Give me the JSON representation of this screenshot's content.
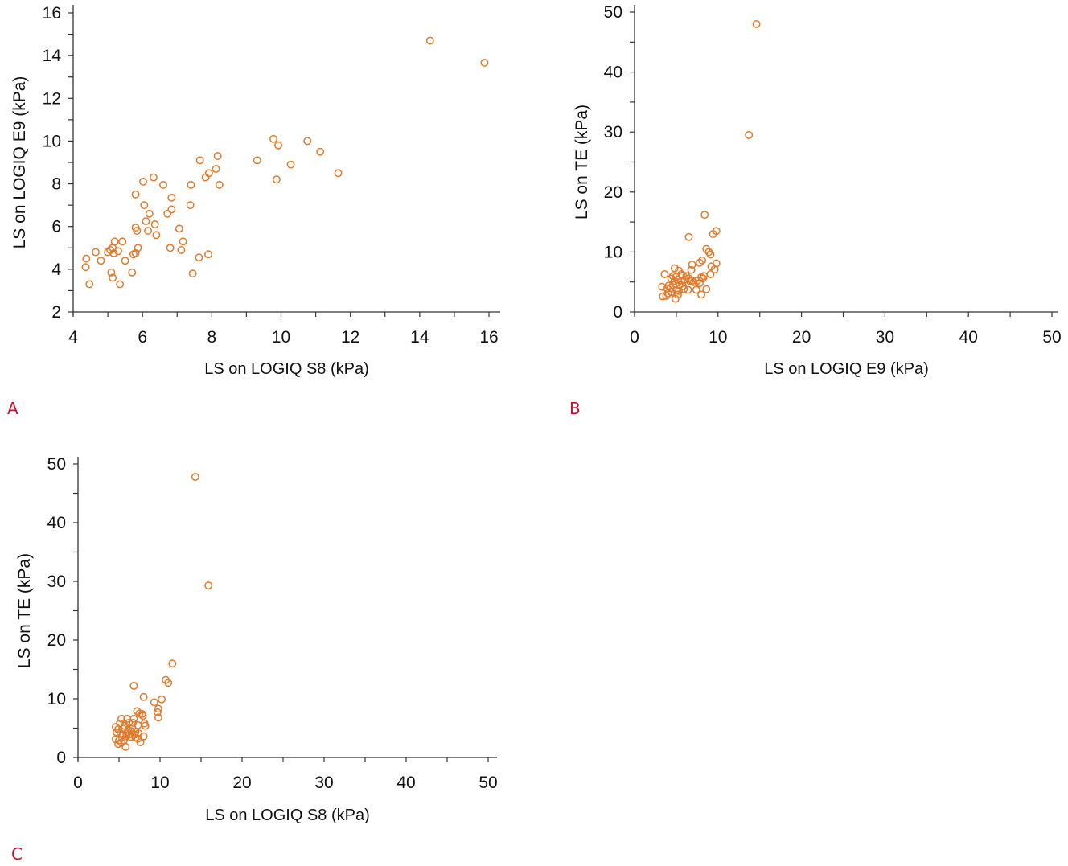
{
  "panels": [
    {
      "label": "A"
    },
    {
      "label": "B"
    },
    {
      "label": "C"
    }
  ],
  "colors": {
    "marker": "#e07a2c",
    "axis": "#333333",
    "panel_label": "#c8102e"
  },
  "chart_data": [
    {
      "id": "A",
      "type": "scatter",
      "title": "",
      "xlabel": "LS on LOGIQ S8 (kPa)",
      "ylabel": "LS on LOGIQ E9 (kPa)",
      "xlim": [
        4,
        16
      ],
      "ylim": [
        2,
        16
      ],
      "xticks": [
        4,
        6,
        8,
        10,
        12,
        14,
        16
      ],
      "xminor": [
        5,
        7,
        9,
        11,
        13,
        15
      ],
      "yticks": [
        2,
        4,
        6,
        8,
        10,
        12,
        14,
        16
      ],
      "yminor": [
        3,
        5,
        7,
        9,
        11,
        13,
        15
      ],
      "grid": false,
      "marker": "open-circle",
      "points": [
        [
          14.3,
          14.7
        ],
        [
          15.87,
          13.67
        ],
        [
          9.78,
          10.1
        ],
        [
          9.92,
          9.8
        ],
        [
          10.76,
          10.0
        ],
        [
          11.13,
          9.5
        ],
        [
          10.28,
          8.9
        ],
        [
          9.31,
          9.1
        ],
        [
          9.87,
          8.2
        ],
        [
          11.65,
          8.5
        ],
        [
          8.17,
          9.3
        ],
        [
          7.66,
          9.1
        ],
        [
          8.12,
          8.7
        ],
        [
          7.92,
          8.5
        ],
        [
          7.82,
          8.3
        ],
        [
          8.22,
          7.95
        ],
        [
          6.02,
          8.1
        ],
        [
          6.32,
          8.3
        ],
        [
          6.6,
          7.95
        ],
        [
          5.8,
          7.5
        ],
        [
          6.84,
          7.35
        ],
        [
          7.4,
          7.95
        ],
        [
          6.05,
          7.0
        ],
        [
          7.38,
          7.0
        ],
        [
          6.2,
          6.6
        ],
        [
          6.84,
          6.8
        ],
        [
          6.72,
          6.6
        ],
        [
          6.1,
          6.25
        ],
        [
          6.36,
          6.1
        ],
        [
          7.06,
          5.9
        ],
        [
          5.8,
          5.95
        ],
        [
          5.84,
          5.8
        ],
        [
          6.16,
          5.8
        ],
        [
          6.4,
          5.6
        ],
        [
          7.17,
          5.3
        ],
        [
          7.12,
          4.9
        ],
        [
          6.8,
          5.0
        ],
        [
          7.45,
          3.8
        ],
        [
          7.63,
          4.55
        ],
        [
          7.9,
          4.7
        ],
        [
          5.87,
          5.0
        ],
        [
          5.74,
          4.7
        ],
        [
          5.8,
          4.75
        ],
        [
          5.5,
          4.4
        ],
        [
          5.7,
          3.85
        ],
        [
          5.2,
          5.3
        ],
        [
          5.42,
          5.3
        ],
        [
          5.14,
          5.0
        ],
        [
          5.3,
          4.85
        ],
        [
          5.17,
          4.75
        ],
        [
          5.0,
          4.8
        ],
        [
          5.07,
          4.9
        ],
        [
          4.65,
          4.8
        ],
        [
          4.38,
          4.5
        ],
        [
          4.8,
          4.4
        ],
        [
          4.36,
          4.1
        ],
        [
          5.1,
          3.85
        ],
        [
          5.14,
          3.6
        ],
        [
          4.47,
          3.3
        ],
        [
          5.35,
          3.3
        ]
      ]
    },
    {
      "id": "B",
      "type": "scatter",
      "title": "",
      "xlabel": "LS on LOGIQ E9 (kPa)",
      "ylabel": "LS on TE (kPa)",
      "xlim": [
        0,
        50
      ],
      "ylim": [
        0,
        50
      ],
      "xticks": [
        0,
        10,
        20,
        30,
        40,
        50
      ],
      "xminor": [
        5,
        15,
        25,
        35,
        45
      ],
      "yticks": [
        0,
        10,
        20,
        30,
        40,
        50
      ],
      "yminor": [
        5,
        15,
        25,
        35,
        45
      ],
      "grid": false,
      "marker": "open-circle",
      "points": [
        [
          14.6,
          48.0
        ],
        [
          13.7,
          29.5
        ],
        [
          8.4,
          16.2
        ],
        [
          9.8,
          13.5
        ],
        [
          9.4,
          13.0
        ],
        [
          6.5,
          12.5
        ],
        [
          8.6,
          10.5
        ],
        [
          8.9,
          10.0
        ],
        [
          9.1,
          9.6
        ],
        [
          8.1,
          8.6
        ],
        [
          7.8,
          8.2
        ],
        [
          6.9,
          7.9
        ],
        [
          6.8,
          7.0
        ],
        [
          9.8,
          8.1
        ],
        [
          9.6,
          7.1
        ],
        [
          9.2,
          7.6
        ],
        [
          9.1,
          6.3
        ],
        [
          4.8,
          7.3
        ],
        [
          5.3,
          6.9
        ],
        [
          3.6,
          6.3
        ],
        [
          4.6,
          6.0
        ],
        [
          5.0,
          5.9
        ],
        [
          5.8,
          6.1
        ],
        [
          5.6,
          6.3
        ],
        [
          6.2,
          6.0
        ],
        [
          4.4,
          5.6
        ],
        [
          4.8,
          5.2
        ],
        [
          5.2,
          5.4
        ],
        [
          5.6,
          5.1
        ],
        [
          6.0,
          5.4
        ],
        [
          6.6,
          5.2
        ],
        [
          7.1,
          5.0
        ],
        [
          6.9,
          5.2
        ],
        [
          4.9,
          4.7
        ],
        [
          4.6,
          4.5
        ],
        [
          5.4,
          4.5
        ],
        [
          5.8,
          4.3
        ],
        [
          4.1,
          4.4
        ],
        [
          4.3,
          4.0
        ],
        [
          3.3,
          4.2
        ],
        [
          3.9,
          3.9
        ],
        [
          4.4,
          3.3
        ],
        [
          4.0,
          3.1
        ],
        [
          3.4,
          2.6
        ],
        [
          3.8,
          2.7
        ],
        [
          5.0,
          3.6
        ],
        [
          5.2,
          2.9
        ],
        [
          4.9,
          2.2
        ],
        [
          5.3,
          3.5
        ],
        [
          5.9,
          3.8
        ],
        [
          6.4,
          3.7
        ],
        [
          7.4,
          3.7
        ],
        [
          7.8,
          4.8
        ],
        [
          8.0,
          5.8
        ],
        [
          8.3,
          6.0
        ],
        [
          8.2,
          5.6
        ],
        [
          8.6,
          3.8
        ],
        [
          8.0,
          2.9
        ],
        [
          7.5,
          5.2
        ],
        [
          6.5,
          5.6
        ]
      ]
    },
    {
      "id": "C",
      "type": "scatter",
      "title": "",
      "xlabel": "LS on LOGIQ S8 (kPa)",
      "ylabel": "LS on TE (kPa)",
      "xlim": [
        0,
        50
      ],
      "ylim": [
        0,
        50
      ],
      "xticks": [
        0,
        10,
        20,
        30,
        40,
        50
      ],
      "xminor": [
        5,
        15,
        25,
        35,
        45
      ],
      "yticks": [
        0,
        10,
        20,
        30,
        40,
        50
      ],
      "yminor": [
        5,
        15,
        25,
        35,
        45
      ],
      "grid": false,
      "marker": "open-circle",
      "points": [
        [
          14.3,
          47.8
        ],
        [
          15.9,
          29.3
        ],
        [
          11.5,
          16.0
        ],
        [
          10.7,
          13.2
        ],
        [
          11.0,
          12.7
        ],
        [
          6.8,
          12.2
        ],
        [
          8.0,
          10.3
        ],
        [
          10.2,
          9.9
        ],
        [
          9.3,
          9.4
        ],
        [
          9.8,
          8.3
        ],
        [
          9.7,
          7.7
        ],
        [
          9.8,
          6.8
        ],
        [
          7.2,
          7.9
        ],
        [
          7.5,
          7.5
        ],
        [
          7.8,
          7.4
        ],
        [
          7.9,
          7.1
        ],
        [
          8.1,
          5.8
        ],
        [
          8.2,
          5.4
        ],
        [
          5.3,
          6.6
        ],
        [
          6.0,
          6.6
        ],
        [
          6.8,
          6.6
        ],
        [
          5.1,
          5.8
        ],
        [
          6.2,
          5.9
        ],
        [
          6.7,
          5.9
        ],
        [
          7.3,
          5.5
        ],
        [
          4.6,
          5.2
        ],
        [
          4.9,
          4.8
        ],
        [
          5.5,
          4.9
        ],
        [
          5.7,
          5.4
        ],
        [
          6.1,
          4.7
        ],
        [
          6.5,
          4.5
        ],
        [
          7.0,
          4.3
        ],
        [
          7.4,
          4.1
        ],
        [
          4.7,
          4.3
        ],
        [
          5.2,
          4.1
        ],
        [
          5.5,
          3.8
        ],
        [
          5.9,
          3.6
        ],
        [
          6.4,
          3.5
        ],
        [
          7.0,
          3.4
        ],
        [
          7.3,
          3.2
        ],
        [
          8.0,
          3.6
        ],
        [
          4.6,
          3.1
        ],
        [
          5.0,
          2.9
        ],
        [
          5.3,
          2.5
        ],
        [
          4.9,
          2.3
        ],
        [
          5.6,
          2.9
        ],
        [
          5.8,
          1.8
        ],
        [
          6.2,
          3.9
        ],
        [
          7.6,
          2.6
        ],
        [
          6.6,
          5.1
        ],
        [
          5.9,
          4.1
        ],
        [
          6.9,
          3.9
        ]
      ]
    }
  ]
}
